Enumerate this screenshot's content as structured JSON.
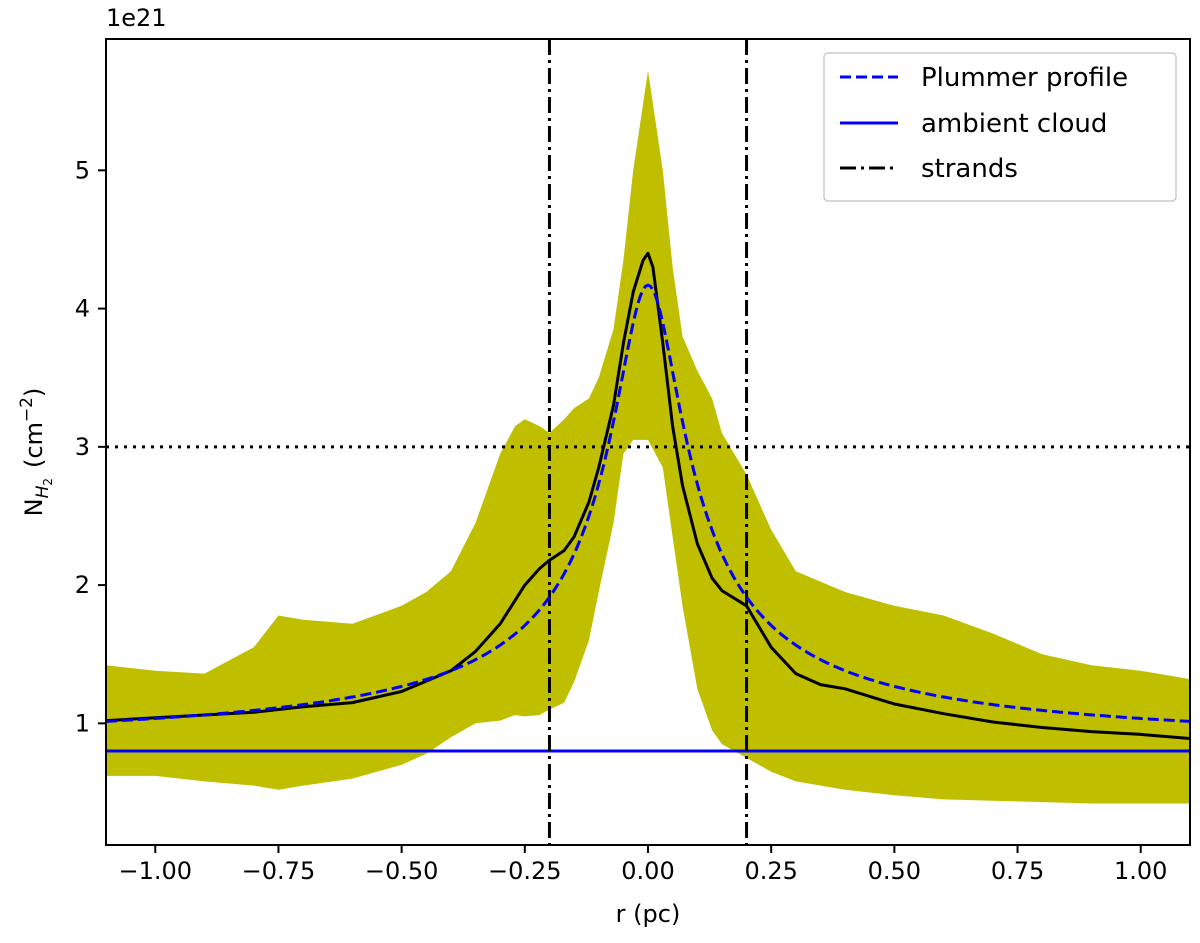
{
  "chart_data": {
    "type": "line",
    "xlabel": "r (pc)",
    "ylabel_main": "N",
    "ylabel_sub": "H",
    "ylabel_subsub": "2",
    "ylabel_unit": "(cm",
    "ylabel_exp": "−2",
    "ylabel_close": ")",
    "y_offset_text": "1e21",
    "xlim": [
      -1.1,
      1.1
    ],
    "ylim": [
      0.12,
      5.95
    ],
    "xticks": [
      -1.0,
      -0.75,
      -0.5,
      -0.25,
      0.0,
      0.25,
      0.5,
      0.75,
      1.0
    ],
    "xtick_labels": [
      "−1.00",
      "−0.75",
      "−0.50",
      "−0.25",
      "0.00",
      "0.25",
      "0.50",
      "0.75",
      "1.00"
    ],
    "yticks": [
      1,
      2,
      3,
      4,
      5
    ],
    "ytick_labels": [
      "1",
      "2",
      "3",
      "4",
      "5"
    ],
    "grid": false,
    "legend_position": "top-right",
    "legend": [
      {
        "label": "Plummer profile",
        "style": "dashed",
        "color": "#0000ff"
      },
      {
        "label": "ambient cloud",
        "style": "solid",
        "color": "#0000ff"
      },
      {
        "label": "strands",
        "style": "dashdot",
        "color": "#000000"
      }
    ],
    "band": {
      "color": "#bfbf00",
      "x": [
        -1.1,
        -1.0,
        -0.9,
        -0.8,
        -0.75,
        -0.7,
        -0.6,
        -0.5,
        -0.45,
        -0.4,
        -0.35,
        -0.3,
        -0.27,
        -0.25,
        -0.22,
        -0.2,
        -0.17,
        -0.15,
        -0.12,
        -0.1,
        -0.07,
        -0.05,
        -0.03,
        0.0,
        0.03,
        0.05,
        0.07,
        0.1,
        0.13,
        0.15,
        0.2,
        0.25,
        0.3,
        0.4,
        0.5,
        0.6,
        0.7,
        0.8,
        0.9,
        1.0,
        1.1
      ],
      "upper": [
        1.42,
        1.38,
        1.36,
        1.55,
        1.78,
        1.75,
        1.72,
        1.85,
        1.95,
        2.1,
        2.45,
        2.95,
        3.15,
        3.2,
        3.15,
        3.1,
        3.2,
        3.28,
        3.35,
        3.5,
        3.85,
        4.35,
        5.0,
        5.72,
        5.0,
        4.3,
        3.8,
        3.55,
        3.35,
        3.1,
        2.8,
        2.4,
        2.1,
        1.95,
        1.85,
        1.78,
        1.65,
        1.5,
        1.42,
        1.38,
        1.32
      ],
      "lower": [
        0.62,
        0.62,
        0.58,
        0.55,
        0.52,
        0.55,
        0.6,
        0.7,
        0.78,
        0.9,
        1.0,
        1.02,
        1.06,
        1.05,
        1.06,
        1.1,
        1.15,
        1.3,
        1.6,
        1.95,
        2.45,
        2.95,
        3.05,
        3.05,
        2.85,
        2.35,
        1.85,
        1.25,
        0.95,
        0.85,
        0.75,
        0.65,
        0.58,
        0.52,
        0.48,
        0.45,
        0.44,
        0.43,
        0.42,
        0.42,
        0.42
      ]
    },
    "series": [
      {
        "style": "solid",
        "color": "#000000",
        "x": [
          -1.1,
          -1.0,
          -0.8,
          -0.7,
          -0.6,
          -0.5,
          -0.4,
          -0.35,
          -0.3,
          -0.25,
          -0.22,
          -0.2,
          -0.17,
          -0.15,
          -0.12,
          -0.1,
          -0.07,
          -0.05,
          -0.03,
          -0.01,
          0.0,
          0.01,
          0.03,
          0.05,
          0.07,
          0.1,
          0.13,
          0.15,
          0.2,
          0.25,
          0.3,
          0.35,
          0.4,
          0.5,
          0.6,
          0.7,
          0.8,
          0.9,
          1.0,
          1.1
        ],
        "y": [
          1.02,
          1.04,
          1.08,
          1.12,
          1.15,
          1.23,
          1.38,
          1.52,
          1.72,
          2.0,
          2.12,
          2.18,
          2.25,
          2.35,
          2.6,
          2.85,
          3.3,
          3.75,
          4.12,
          4.35,
          4.4,
          4.3,
          3.75,
          3.15,
          2.72,
          2.3,
          2.05,
          1.96,
          1.85,
          1.55,
          1.36,
          1.28,
          1.25,
          1.14,
          1.07,
          1.01,
          0.97,
          0.94,
          0.92,
          0.89
        ]
      },
      {
        "style": "dashed",
        "color": "#0000ff",
        "profile": "plummer",
        "amplitude": 3.37,
        "offset": 0.8,
        "rflat": 0.07,
        "p": 2
      }
    ],
    "hlines": [
      {
        "y": 0.8,
        "style": "solid",
        "color": "#0000ff"
      },
      {
        "y": 3.0,
        "style": "dotted",
        "color": "#000000"
      }
    ],
    "vlines": [
      {
        "x": -0.2,
        "style": "dashdot",
        "color": "#000000"
      },
      {
        "x": 0.2,
        "style": "dashdot",
        "color": "#000000"
      }
    ]
  }
}
